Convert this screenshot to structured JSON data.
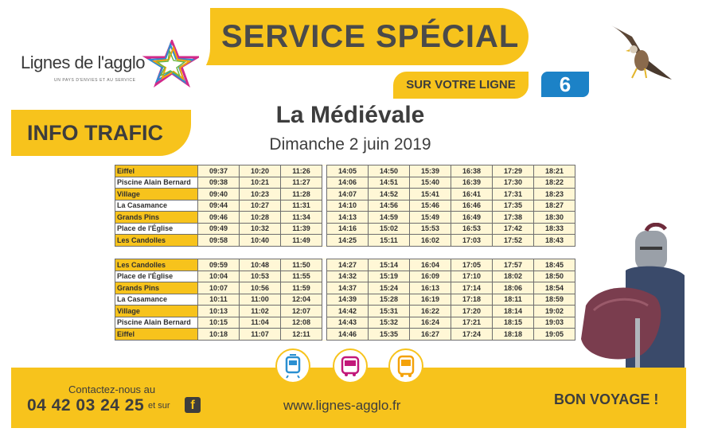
{
  "header": {
    "logo_text": "Lignes de l'agglo",
    "logo_tagline": "UN PAYS D'ENVIES ET AU SERVICE",
    "title": "SERVICE SPÉCIAL",
    "line_label": "SUR VOTRE LIGNE",
    "line_number": "6",
    "info_label": "INFO TRAFIC"
  },
  "event": {
    "title": "La Médiévale",
    "date": "Dimanche 2 juin 2019"
  },
  "timetable_outbound": {
    "stops": [
      "Eiffel",
      "Piscine Alain Bernard",
      "Village",
      "La Casamance",
      "Grands Pins",
      "Place de l'Église",
      "Les Candolles"
    ],
    "left_times": [
      [
        "09:37",
        "10:20",
        "11:26"
      ],
      [
        "09:38",
        "10:21",
        "11:27"
      ],
      [
        "09:40",
        "10:23",
        "11:28"
      ],
      [
        "09:44",
        "10:27",
        "11:31"
      ],
      [
        "09:46",
        "10:28",
        "11:34"
      ],
      [
        "09:49",
        "10:32",
        "11:39"
      ],
      [
        "09:58",
        "10:40",
        "11:49"
      ]
    ],
    "right_times": [
      [
        "14:05",
        "14:50",
        "15:39",
        "16:38",
        "17:29",
        "18:21"
      ],
      [
        "14:06",
        "14:51",
        "15:40",
        "16:39",
        "17:30",
        "18:22"
      ],
      [
        "14:07",
        "14:52",
        "15:41",
        "16:41",
        "17:31",
        "18:23"
      ],
      [
        "14:10",
        "14:56",
        "15:46",
        "16:46",
        "17:35",
        "18:27"
      ],
      [
        "14:13",
        "14:59",
        "15:49",
        "16:49",
        "17:38",
        "18:30"
      ],
      [
        "14:16",
        "15:02",
        "15:53",
        "16:53",
        "17:42",
        "18:33"
      ],
      [
        "14:25",
        "15:11",
        "16:02",
        "17:03",
        "17:52",
        "18:43"
      ]
    ]
  },
  "timetable_return": {
    "stops": [
      "Les Candolles",
      "Place de l'Église",
      "Grands Pins",
      "La Casamance",
      "Village",
      "Piscine Alain Bernard",
      "Eiffel"
    ],
    "left_times": [
      [
        "09:59",
        "10:48",
        "11:50"
      ],
      [
        "10:04",
        "10:53",
        "11:55"
      ],
      [
        "10:07",
        "10:56",
        "11:59"
      ],
      [
        "10:11",
        "11:00",
        "12:04"
      ],
      [
        "10:13",
        "11:02",
        "12:07"
      ],
      [
        "10:15",
        "11:04",
        "12:08"
      ],
      [
        "10:18",
        "11:07",
        "12:11"
      ]
    ],
    "right_times": [
      [
        "14:27",
        "15:14",
        "16:04",
        "17:05",
        "17:57",
        "18:45"
      ],
      [
        "14:32",
        "15:19",
        "16:09",
        "17:10",
        "18:02",
        "18:50"
      ],
      [
        "14:37",
        "15:24",
        "16:13",
        "17:14",
        "18:06",
        "18:54"
      ],
      [
        "14:39",
        "15:28",
        "16:19",
        "17:18",
        "18:11",
        "18:59"
      ],
      [
        "14:42",
        "15:31",
        "16:22",
        "17:20",
        "18:14",
        "19:02"
      ],
      [
        "14:43",
        "15:32",
        "16:24",
        "17:21",
        "18:15",
        "19:03"
      ],
      [
        "14:46",
        "15:35",
        "16:27",
        "17:24",
        "18:18",
        "19:05"
      ]
    ]
  },
  "footer": {
    "contact_label": "Contactez-nous au",
    "phone": "04 42 03 24 25",
    "et_sur": "et sur",
    "website": "www.lignes-agglo.fr",
    "farewell": "BON VOYAGE !",
    "icons": [
      "tram-icon",
      "bus-icon",
      "coach-icon"
    ]
  },
  "colors": {
    "accent_yellow": "#f7c31c",
    "line_blue": "#1c82c7",
    "text_dark": "#3d3d3d",
    "icon_blue": "#2a8fd1",
    "icon_magenta": "#c2187a",
    "icon_orange": "#f4a20a"
  }
}
